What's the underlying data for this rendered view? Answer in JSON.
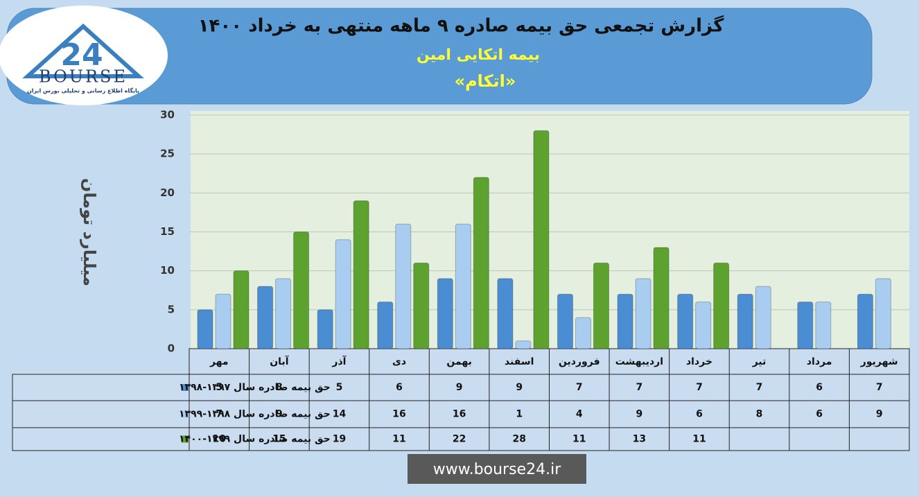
{
  "header": {
    "logo_text": "BOURSE",
    "logo_number": "24",
    "logo_caption": "پایگاه اطلاع رسانی و تحلیلی بورس ایران"
  },
  "chart_data": {
    "type": "bar",
    "title": "گزارش تجمعی حق بیمه صادره ۹ ماهه منتهی به خرداد ۱۴۰۰",
    "subtitle": "بیمه اتکایی امین",
    "subtitle2": "«اتکام»",
    "y_label": "میلیارد تومان",
    "categories": [
      "مهر",
      "آبان",
      "آذر",
      "دی",
      "بهمن",
      "اسفند",
      "فروردین",
      "اردیبهشت",
      "خرداد",
      "تیر",
      "مرداد",
      "شهریور"
    ],
    "series": [
      {
        "name": "حق بیمه صادره سال ۱۳۹۷-۱۳۹۸",
        "color": "#4a8dd2",
        "values": [
          5,
          8,
          5,
          6,
          9,
          9,
          7,
          7,
          7,
          7,
          6,
          7
        ]
      },
      {
        "name": "حق بیمه صادره سال ۱۳۹۸-۱۳۹۹",
        "color": "#a9cdf0",
        "values": [
          7,
          9,
          14,
          16,
          16,
          1,
          4,
          9,
          6,
          8,
          6,
          9
        ]
      },
      {
        "name": "حق بیمه صادره سال ۱۳۹۹-۱۴۰۰",
        "color": "#5da12e",
        "values": [
          10,
          15,
          19,
          11,
          22,
          28,
          11,
          13,
          11,
          null,
          null,
          null
        ]
      }
    ],
    "ylim": [
      0,
      30
    ],
    "yticks": [
      0,
      5,
      10,
      15,
      20,
      25,
      30
    ],
    "grid": true
  },
  "footer": {
    "website": "www.bourse24.ir"
  }
}
